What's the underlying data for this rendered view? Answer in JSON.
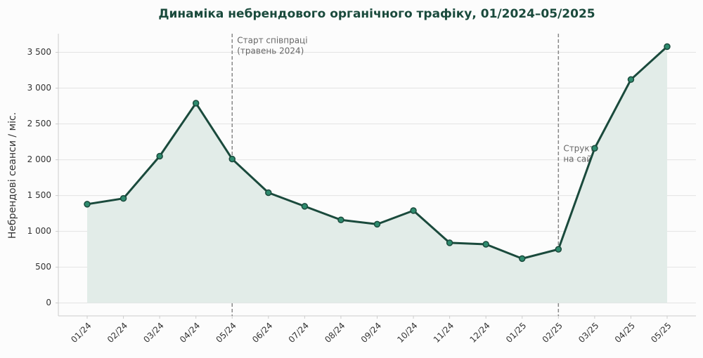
{
  "chart_data": {
    "type": "line",
    "title": "Динаміка небрендового органічного трафіку, 01/2024–05/2025",
    "y_label": "Небрендові сеанси / міс.",
    "categories": [
      "01/24",
      "02/24",
      "03/24",
      "04/24",
      "05/24",
      "06/24",
      "07/24",
      "08/24",
      "09/24",
      "10/24",
      "11/24",
      "12/24",
      "01/25",
      "02/25",
      "03/25",
      "04/25",
      "05/25"
    ],
    "values": [
      1380,
      1460,
      2050,
      2790,
      2010,
      1540,
      1350,
      1160,
      1100,
      1290,
      840,
      820,
      620,
      750,
      2160,
      3120,
      3580
    ],
    "color": "#1a4a3c",
    "marker_color": "#2e8b6e",
    "area_color": "#e2ece8",
    "ylim": [
      -180,
      3760
    ],
    "yticks": [
      0,
      500,
      {
        "value": 1000,
        "label": "1 000"
      },
      {
        "value": 1500,
        "label": "1 500"
      },
      {
        "value": 2000,
        "label": "2 000"
      },
      {
        "value": 2500,
        "label": "2 500"
      },
      {
        "value": 3000,
        "label": "3 000"
      },
      {
        "value": 3500,
        "label": "3 500"
      }
    ],
    "grid": true,
    "annotations": [
      {
        "at": "05/24",
        "lines": [
          "Старт співпраці",
          "(травень 2024)"
        ]
      },
      {
        "at": "02/25",
        "lines": [
          "Структурні зміни",
          "на сайті"
        ]
      }
    ]
  }
}
